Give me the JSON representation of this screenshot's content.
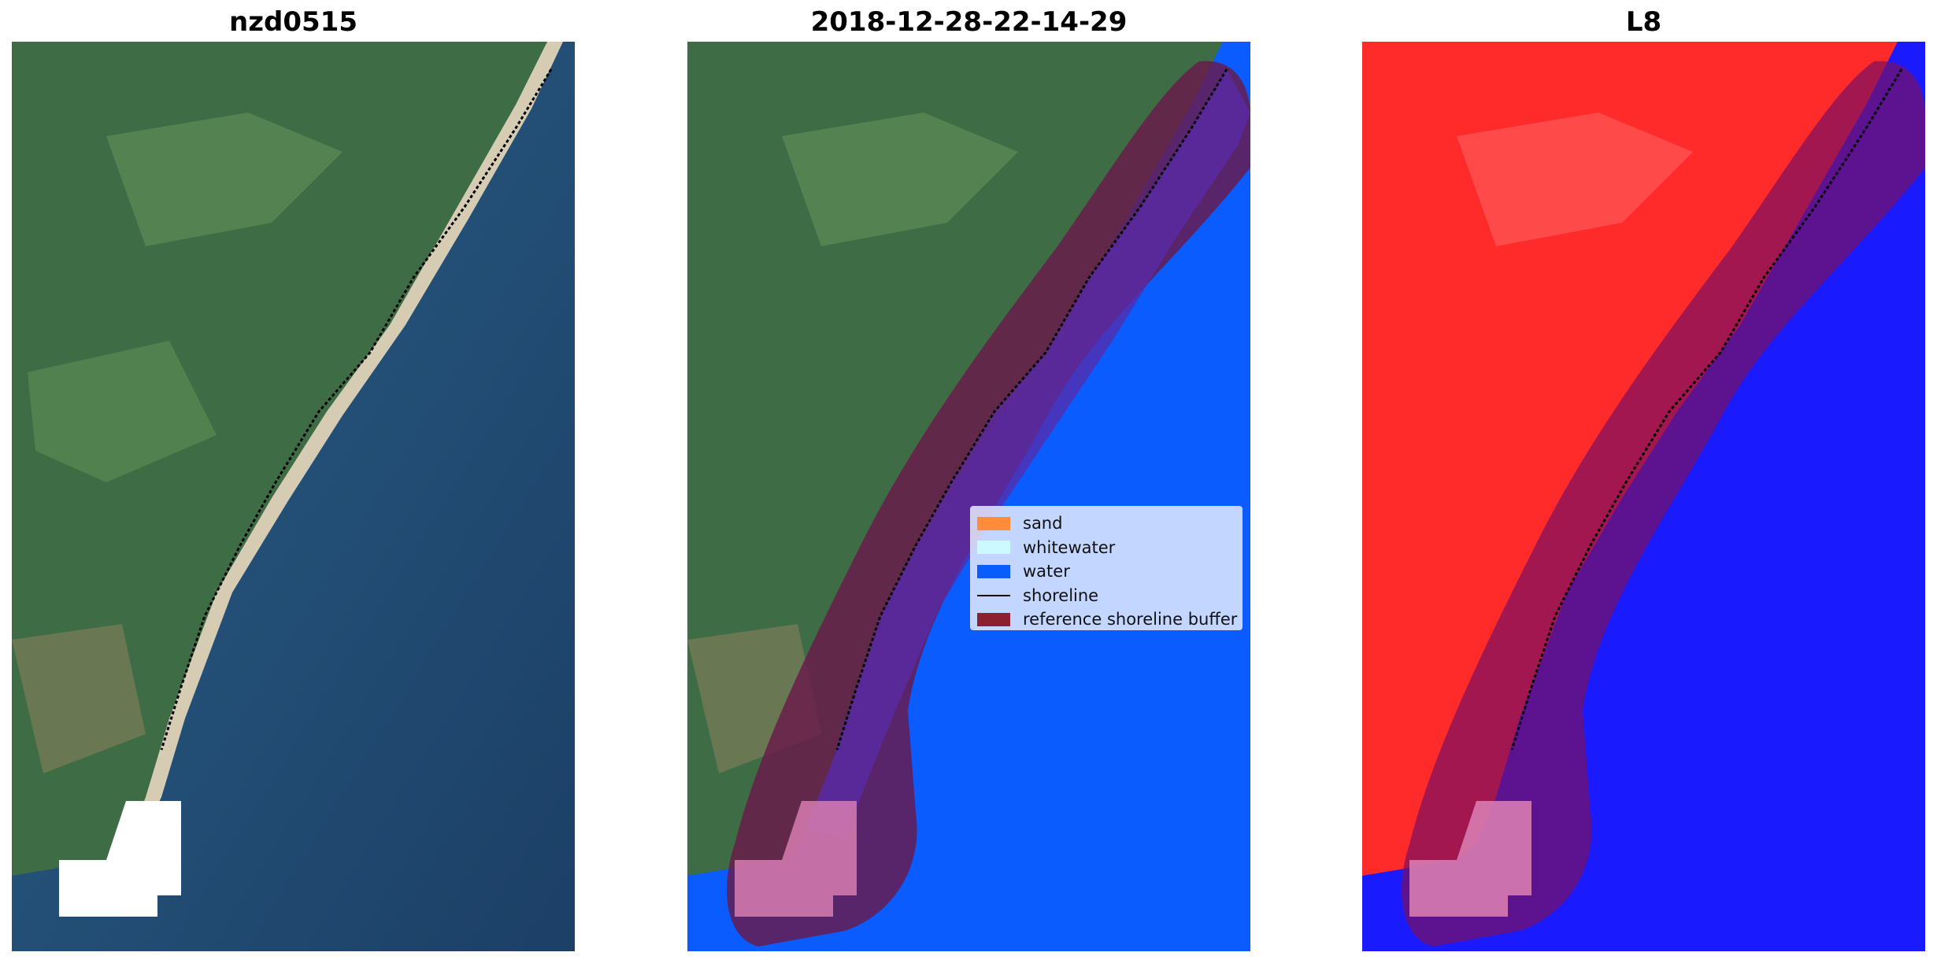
{
  "panels": [
    {
      "title": "nzd0515"
    },
    {
      "title": "2018-12-28-22-14-29"
    },
    {
      "title": "L8"
    }
  ],
  "legend": {
    "items": [
      {
        "label": "sand",
        "color": "#ff8c3a",
        "kind": "patch"
      },
      {
        "label": "whitewater",
        "color": "#ccf8ff",
        "kind": "patch"
      },
      {
        "label": "water",
        "color": "#0a5cff",
        "kind": "patch"
      },
      {
        "label": "shoreline",
        "color": "#000000",
        "kind": "line"
      },
      {
        "label": "reference shoreline buffer",
        "color": "#8c2030",
        "kind": "patch"
      }
    ]
  },
  "colors": {
    "land": "#3f6b45",
    "sea": "#1d4f7c",
    "beach": "#d8cfb8",
    "class_water": "#0a5cff",
    "buffer": "#8c2030",
    "l8_land": "#ff2a2a",
    "l8_water": "#1a1aff",
    "nodata": "#ffffff"
  }
}
